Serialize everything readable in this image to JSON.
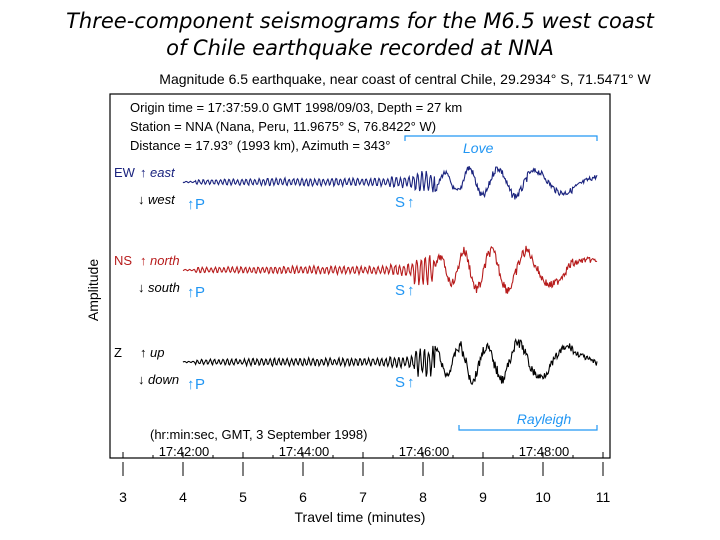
{
  "slide": {
    "title_line1": "Three-component seismograms for the M6.5 west coast",
    "title_line2": "of Chile earthquake recorded at NNA"
  },
  "chart_data": {
    "type": "line",
    "title": "Magnitude 6.5 earthquake, near coast of central Chile, 29.2934° S, 71.5471° W",
    "info": [
      "Origin time = 17:37:59.0 GMT 1998/09/03, Depth = 27 km",
      "Station = NNA (Nana, Peru, 11.9675° S, 76.8422° W)",
      "Distance = 17.93° (1993 km), Azimuth = 343°"
    ],
    "xlabel": "Travel time (minutes)",
    "ylabel": "Amplitude",
    "xlim": [
      3,
      11
    ],
    "x_ticks": [
      "3",
      "4",
      "5",
      "6",
      "7",
      "8",
      "9",
      "10",
      "11"
    ],
    "top_axis_caption": "(hr:min:sec, GMT, 3 September 1998)",
    "top_ticks": [
      {
        "x": 4.0167,
        "label": "17:42:00"
      },
      {
        "x": 6.0167,
        "label": "17:44:00"
      },
      {
        "x": 8.0167,
        "label": "17:46:00"
      },
      {
        "x": 10.0167,
        "label": "17:48:00"
      }
    ],
    "phases": {
      "P_arrival_min": 4.2,
      "S_arrival_min": 7.6,
      "love_window": [
        7.7,
        10.9
      ],
      "rayleigh_window": [
        8.6,
        10.9
      ],
      "love_label": "Love",
      "rayleigh_label": "Rayleigh",
      "P_label": "P",
      "S_label": "S"
    },
    "series": [
      {
        "component": "EW",
        "up_label": "east",
        "down_label": "west",
        "color": "#1a237e"
      },
      {
        "component": "NS",
        "up_label": "north",
        "down_label": "south",
        "color": "#b71c1c"
      },
      {
        "component": "Z",
        "up_label": "up",
        "down_label": "down",
        "color": "#000000"
      }
    ],
    "grid": false,
    "colors": {
      "annotation": "#2196f3",
      "title": "#000000"
    }
  }
}
